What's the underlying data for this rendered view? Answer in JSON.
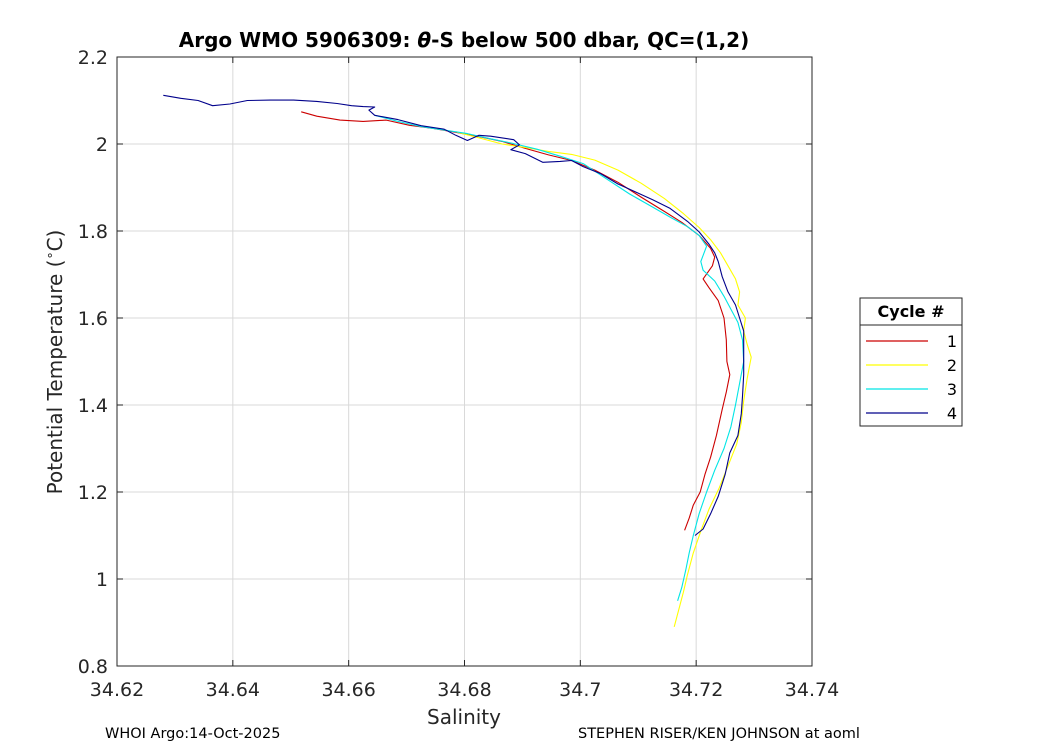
{
  "chart_data": {
    "type": "line",
    "title_prefix": "Argo WMO 5906309: ",
    "title_theta": "θ",
    "title_suffix": "-S below 500 dbar,  QC=(1,2)",
    "xlabel": "Salinity",
    "ylabel_prefix": "Potential Temperature (",
    "ylabel_degree": "∘",
    "ylabel_suffix": "C)",
    "xlim": [
      34.62,
      34.74
    ],
    "ylim": [
      0.8,
      2.2
    ],
    "xticks": [
      34.62,
      34.64,
      34.66,
      34.68,
      34.7,
      34.72,
      34.74
    ],
    "xtick_labels": [
      "34.62",
      "34.64",
      "34.66",
      "34.68",
      "34.7",
      "34.72",
      "34.74"
    ],
    "yticks": [
      0.8,
      1.0,
      1.2,
      1.4,
      1.6,
      1.8,
      2.0,
      2.2
    ],
    "ytick_labels": [
      "0.8",
      "1",
      "1.2",
      "1.4",
      "1.6",
      "1.8",
      "2",
      "2.2"
    ],
    "grid": true,
    "legend_placement": "outside-right",
    "legend_title": "Cycle #",
    "series": [
      {
        "name": "1",
        "color": "#cc0000",
        "points": [
          [
            34.6518,
            2.074
          ],
          [
            34.6545,
            2.064
          ],
          [
            34.6585,
            2.055
          ],
          [
            34.6625,
            2.052
          ],
          [
            34.6665,
            2.055
          ],
          [
            34.6705,
            2.043
          ],
          [
            34.6745,
            2.036
          ],
          [
            34.6785,
            2.027
          ],
          [
            34.6825,
            2.017
          ],
          [
            34.6865,
            2.006
          ],
          [
            34.6905,
            1.99
          ],
          [
            34.6945,
            1.975
          ],
          [
            34.6985,
            1.962
          ],
          [
            34.7025,
            1.94
          ],
          [
            34.7065,
            1.912
          ],
          [
            34.7105,
            1.878
          ],
          [
            34.7145,
            1.845
          ],
          [
            34.7175,
            1.82
          ],
          [
            34.7205,
            1.79
          ],
          [
            34.7225,
            1.76
          ],
          [
            34.7232,
            1.74
          ],
          [
            34.7228,
            1.72
          ],
          [
            34.7212,
            1.69
          ],
          [
            34.7222,
            1.67
          ],
          [
            34.7238,
            1.64
          ],
          [
            34.7248,
            1.6
          ],
          [
            34.7252,
            1.55
          ],
          [
            34.7253,
            1.5
          ],
          [
            34.7258,
            1.47
          ],
          [
            34.7252,
            1.43
          ],
          [
            34.7245,
            1.39
          ],
          [
            34.7235,
            1.33
          ],
          [
            34.7225,
            1.28
          ],
          [
            34.7215,
            1.24
          ],
          [
            34.7207,
            1.2
          ],
          [
            34.7195,
            1.17
          ],
          [
            34.7188,
            1.14
          ],
          [
            34.718,
            1.112
          ]
        ]
      },
      {
        "name": "2",
        "color": "#ffff00",
        "points": [
          [
            34.6785,
            2.028
          ],
          [
            34.6825,
            2.014
          ],
          [
            34.6865,
            2.0
          ],
          [
            34.6905,
            1.992
          ],
          [
            34.6945,
            1.983
          ],
          [
            34.6985,
            1.976
          ],
          [
            34.7025,
            1.963
          ],
          [
            34.7065,
            1.94
          ],
          [
            34.7105,
            1.91
          ],
          [
            34.7145,
            1.875
          ],
          [
            34.7178,
            1.84
          ],
          [
            34.7205,
            1.808
          ],
          [
            34.7225,
            1.78
          ],
          [
            34.7242,
            1.75
          ],
          [
            34.7255,
            1.72
          ],
          [
            34.7268,
            1.69
          ],
          [
            34.7275,
            1.66
          ],
          [
            34.7272,
            1.63
          ],
          [
            34.7285,
            1.6
          ],
          [
            34.7282,
            1.57
          ],
          [
            34.7288,
            1.54
          ],
          [
            34.7295,
            1.51
          ],
          [
            34.7288,
            1.46
          ],
          [
            34.7282,
            1.41
          ],
          [
            34.7278,
            1.36
          ],
          [
            34.727,
            1.31
          ],
          [
            34.7255,
            1.26
          ],
          [
            34.724,
            1.21
          ],
          [
            34.7222,
            1.16
          ],
          [
            34.7208,
            1.11
          ],
          [
            34.7195,
            1.06
          ],
          [
            34.7185,
            1.01
          ],
          [
            34.7178,
            0.97
          ],
          [
            34.717,
            0.93
          ],
          [
            34.7162,
            0.89
          ]
        ]
      },
      {
        "name": "3",
        "color": "#00e5e5",
        "points": [
          [
            34.6645,
            2.066
          ],
          [
            34.6685,
            2.052
          ],
          [
            34.6725,
            2.04
          ],
          [
            34.6765,
            2.032
          ],
          [
            34.6805,
            2.024
          ],
          [
            34.6845,
            2.012
          ],
          [
            34.6885,
            2.001
          ],
          [
            34.6925,
            1.988
          ],
          [
            34.6965,
            1.972
          ],
          [
            34.7005,
            1.955
          ],
          [
            34.7045,
            1.92
          ],
          [
            34.7085,
            1.885
          ],
          [
            34.7125,
            1.855
          ],
          [
            34.7155,
            1.832
          ],
          [
            34.7185,
            1.81
          ],
          [
            34.7205,
            1.79
          ],
          [
            34.7218,
            1.765
          ],
          [
            34.7208,
            1.73
          ],
          [
            34.7212,
            1.71
          ],
          [
            34.7232,
            1.685
          ],
          [
            34.7248,
            1.65
          ],
          [
            34.726,
            1.62
          ],
          [
            34.7272,
            1.59
          ],
          [
            34.728,
            1.55
          ],
          [
            34.7282,
            1.5
          ],
          [
            34.7275,
            1.45
          ],
          [
            34.7268,
            1.4
          ],
          [
            34.726,
            1.35
          ],
          [
            34.7248,
            1.3
          ],
          [
            34.7232,
            1.25
          ],
          [
            34.7218,
            1.2
          ],
          [
            34.7205,
            1.15
          ],
          [
            34.7195,
            1.1
          ],
          [
            34.7188,
            1.06
          ],
          [
            34.7182,
            1.02
          ],
          [
            34.7175,
            0.98
          ],
          [
            34.7168,
            0.95
          ]
        ]
      },
      {
        "name": "4",
        "color": "#00008b",
        "points": [
          [
            34.628,
            2.112
          ],
          [
            34.631,
            2.105
          ],
          [
            34.634,
            2.1
          ],
          [
            34.6365,
            2.088
          ],
          [
            34.6395,
            2.092
          ],
          [
            34.6425,
            2.1
          ],
          [
            34.6465,
            2.101
          ],
          [
            34.6505,
            2.101
          ],
          [
            34.6545,
            2.098
          ],
          [
            34.658,
            2.093
          ],
          [
            34.6605,
            2.088
          ],
          [
            34.6625,
            2.086
          ],
          [
            34.6645,
            2.085
          ],
          [
            34.6635,
            2.078
          ],
          [
            34.6645,
            2.066
          ],
          [
            34.6685,
            2.056
          ],
          [
            34.6725,
            2.042
          ],
          [
            34.6765,
            2.034
          ],
          [
            34.6785,
            2.02
          ],
          [
            34.6805,
            2.008
          ],
          [
            34.6825,
            2.02
          ],
          [
            34.6845,
            2.018
          ],
          [
            34.6885,
            2.01
          ],
          [
            34.6895,
            1.998
          ],
          [
            34.688,
            1.987
          ],
          [
            34.6905,
            1.978
          ],
          [
            34.6935,
            1.958
          ],
          [
            34.6965,
            1.96
          ],
          [
            34.6985,
            1.962
          ],
          [
            34.7005,
            1.948
          ],
          [
            34.7035,
            1.932
          ],
          [
            34.7065,
            1.908
          ],
          [
            34.7095,
            1.89
          ],
          [
            34.7125,
            1.872
          ],
          [
            34.7155,
            1.852
          ],
          [
            34.7185,
            1.822
          ],
          [
            34.7205,
            1.798
          ],
          [
            34.7222,
            1.77
          ],
          [
            34.7232,
            1.75
          ],
          [
            34.7238,
            1.73
          ],
          [
            34.7245,
            1.695
          ],
          [
            34.7255,
            1.66
          ],
          [
            34.7268,
            1.63
          ],
          [
            34.7275,
            1.6
          ],
          [
            34.7282,
            1.57
          ],
          [
            34.7282,
            1.52
          ],
          [
            34.7282,
            1.47
          ],
          [
            34.728,
            1.42
          ],
          [
            34.7278,
            1.38
          ],
          [
            34.7272,
            1.33
          ],
          [
            34.7258,
            1.29
          ],
          [
            34.725,
            1.24
          ],
          [
            34.7238,
            1.19
          ],
          [
            34.7225,
            1.15
          ],
          [
            34.7212,
            1.115
          ],
          [
            34.7198,
            1.1
          ]
        ]
      }
    ]
  },
  "footer": {
    "left": "WHOI Argo:14-Oct-2025",
    "right": "STEPHEN RISER/KEN JOHNSON at aoml"
  }
}
